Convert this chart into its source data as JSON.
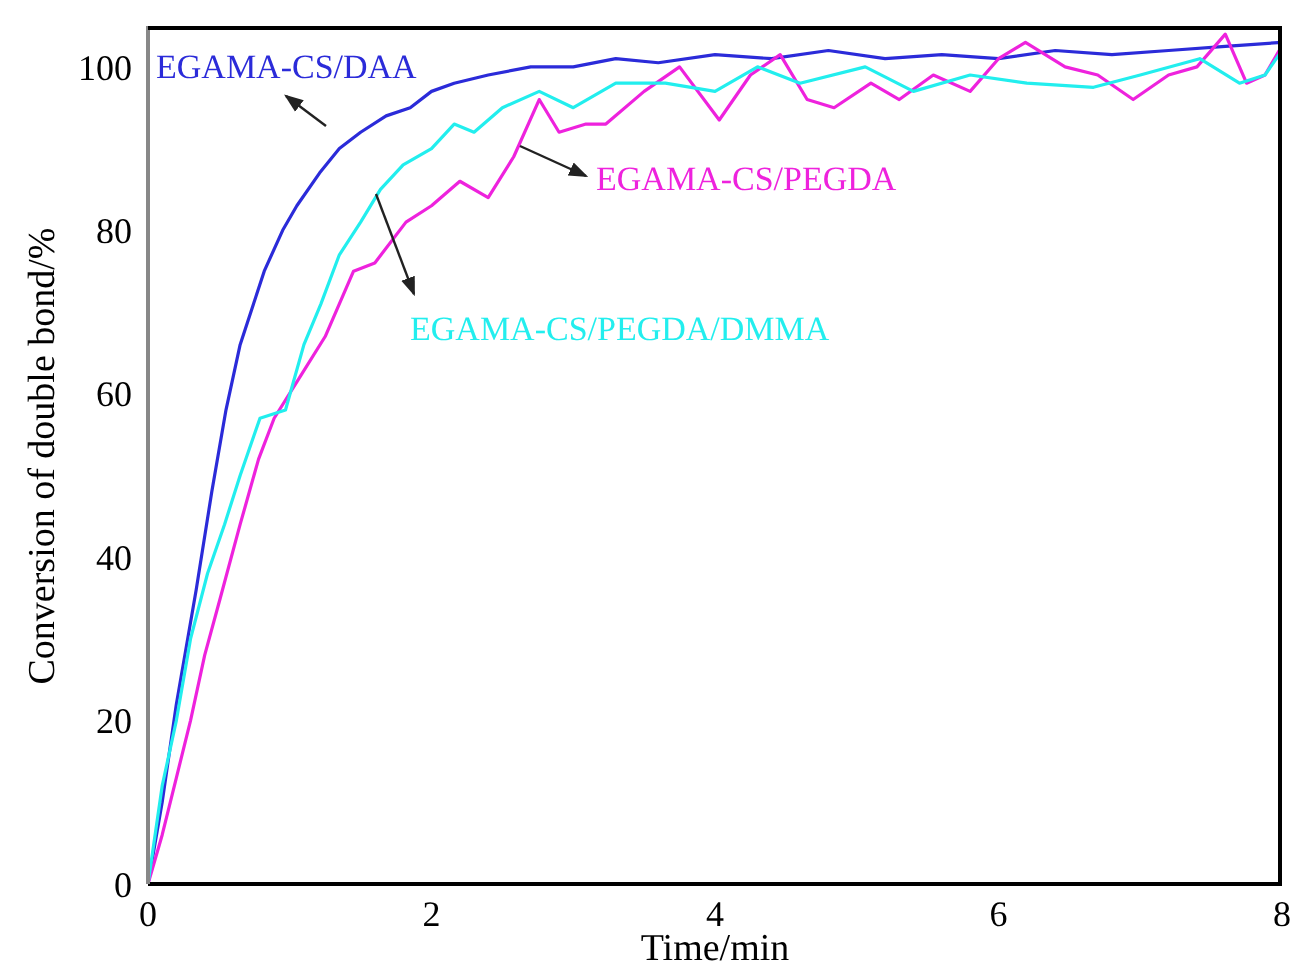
{
  "chart_data": {
    "type": "line",
    "xlabel": "Time/min",
    "ylabel": "Conversion of double bond/%",
    "xlim": [
      0,
      8
    ],
    "ylim": [
      0,
      105
    ],
    "xticks": [
      0,
      2,
      4,
      6,
      8
    ],
    "yticks": [
      0,
      20,
      40,
      60,
      80,
      100
    ],
    "marker": "none",
    "line_style": "solid",
    "series": [
      {
        "color": "#2b2bd9",
        "x": [
          0,
          0.1,
          0.2,
          0.34,
          0.45,
          0.55,
          0.65,
          0.82,
          0.95,
          1.05,
          1.21,
          1.35,
          1.5,
          1.68,
          1.85,
          2.0,
          2.16,
          2.4,
          2.7,
          3.0,
          3.3,
          3.6,
          4.0,
          4.4,
          4.8,
          5.2,
          5.6,
          6.0,
          6.4,
          6.8,
          7.2,
          7.6,
          8.0
        ],
        "values": [
          0,
          10,
          22,
          36,
          48,
          58,
          66,
          75,
          80,
          83,
          87,
          90,
          92,
          94,
          95,
          97,
          98,
          99,
          100,
          100,
          101,
          100.5,
          101.5,
          101,
          102,
          101,
          101.5,
          101,
          102,
          101.5,
          102,
          102.5,
          103
        ]
      },
      {
        "color": "#ee22dd",
        "x": [
          0,
          0.1,
          0.2,
          0.3,
          0.4,
          0.51,
          0.65,
          0.78,
          0.89,
          1.07,
          1.25,
          1.45,
          1.6,
          1.82,
          2.0,
          2.2,
          2.4,
          2.58,
          2.76,
          2.9,
          3.09,
          3.23,
          3.5,
          3.75,
          4.03,
          4.25,
          4.46,
          4.65,
          4.84,
          5.1,
          5.3,
          5.54,
          5.8,
          6.0,
          6.19,
          6.47,
          6.7,
          6.95,
          7.2,
          7.4,
          7.6,
          7.75,
          7.88,
          7.98
        ],
        "values": [
          0,
          6,
          13,
          20,
          28,
          35,
          44,
          52,
          57,
          62,
          67,
          75,
          76,
          81,
          83,
          86,
          84,
          89,
          96,
          92,
          93,
          93,
          97,
          100,
          93.5,
          99,
          101.5,
          96,
          95,
          98,
          96,
          99,
          97,
          101,
          103,
          100,
          99,
          96,
          99,
          100,
          104,
          98,
          99,
          102
        ]
      },
      {
        "color": "#22eeee",
        "x": [
          0,
          0.1,
          0.2,
          0.3,
          0.42,
          0.54,
          0.65,
          0.79,
          0.97,
          1.1,
          1.22,
          1.35,
          1.5,
          1.64,
          1.8,
          2.0,
          2.16,
          2.3,
          2.5,
          2.76,
          3.0,
          3.3,
          3.65,
          4.0,
          4.3,
          4.6,
          5.06,
          5.4,
          5.8,
          6.2,
          6.67,
          7.0,
          7.42,
          7.7,
          7.88,
          8.0
        ],
        "values": [
          0,
          12,
          20,
          30,
          38,
          44,
          50,
          57,
          58,
          66,
          71,
          77,
          81,
          85,
          88,
          90,
          93,
          92,
          95,
          97,
          95,
          98,
          98,
          97,
          100,
          98,
          100,
          97,
          99,
          98,
          97.5,
          99,
          101,
          98,
          99,
          102
        ]
      }
    ],
    "annotations": [
      "EGAMA-CS/DAA",
      "EGAMA-CS/PEGDA",
      "EGAMA-CS/PEGDA/DMMA"
    ]
  }
}
